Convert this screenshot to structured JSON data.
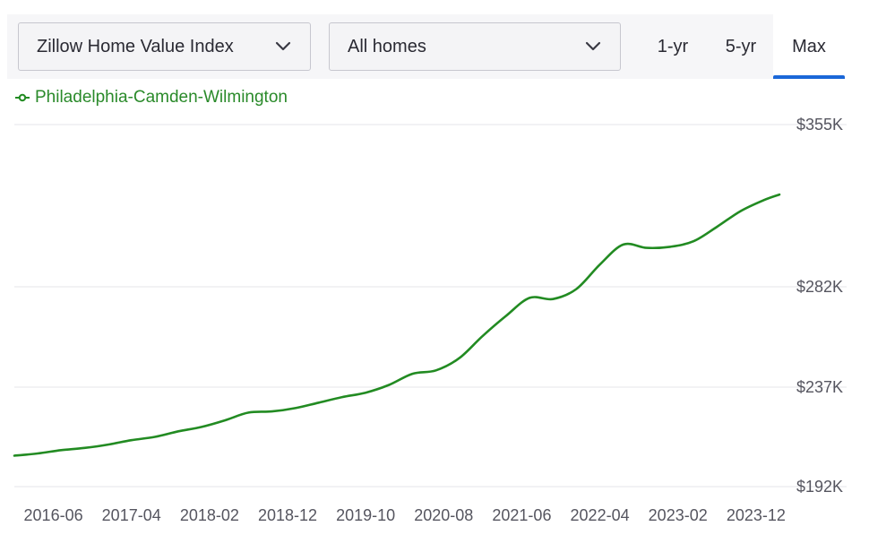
{
  "controls": {
    "metric_dropdown": "Zillow Home Value Index",
    "type_dropdown": "All homes",
    "range_tabs": [
      "1-yr",
      "5-yr",
      "Max"
    ],
    "active_range": "Max"
  },
  "colors": {
    "series": "#228b22",
    "accent": "#1a67d8",
    "grid": "#e6e6ea"
  },
  "chart_data": {
    "type": "line",
    "title": "",
    "xlabel": "",
    "ylabel": "",
    "legend": "top-left",
    "grid": true,
    "x_ticks": [
      "2016-06",
      "2017-04",
      "2018-02",
      "2018-12",
      "2019-10",
      "2020-08",
      "2021-06",
      "2022-04",
      "2023-02",
      "2023-12"
    ],
    "y_ticks": [
      "$192K",
      "$237K",
      "$282K",
      "$355K"
    ],
    "y_tick_values": [
      192000,
      237000,
      282000,
      355000
    ],
    "ylim": [
      192000,
      355000
    ],
    "series": [
      {
        "name": "Philadelphia-Camden-Wilmington",
        "points": [
          [
            "2016-01",
            206000
          ],
          [
            "2016-04",
            207000
          ],
          [
            "2016-07",
            208500
          ],
          [
            "2016-10",
            209500
          ],
          [
            "2017-01",
            211000
          ],
          [
            "2017-04",
            213000
          ],
          [
            "2017-07",
            214500
          ],
          [
            "2017-10",
            217000
          ],
          [
            "2018-01",
            219000
          ],
          [
            "2018-04",
            222000
          ],
          [
            "2018-07",
            225500
          ],
          [
            "2018-10",
            226000
          ],
          [
            "2019-01",
            227500
          ],
          [
            "2019-04",
            230000
          ],
          [
            "2019-07",
            232500
          ],
          [
            "2019-10",
            234500
          ],
          [
            "2020-01",
            238000
          ],
          [
            "2020-04",
            243000
          ],
          [
            "2020-07",
            244500
          ],
          [
            "2020-10",
            250000
          ],
          [
            "2021-01",
            260000
          ],
          [
            "2021-04",
            269000
          ],
          [
            "2021-07",
            277000
          ],
          [
            "2021-10",
            276500
          ],
          [
            "2022-01",
            281000
          ],
          [
            "2022-04",
            292000
          ],
          [
            "2022-07",
            301000
          ],
          [
            "2022-10",
            299500
          ],
          [
            "2023-01",
            300000
          ],
          [
            "2023-04",
            302500
          ],
          [
            "2023-07",
            309000
          ],
          [
            "2023-10",
            316000
          ],
          [
            "2024-01",
            321000
          ],
          [
            "2024-03",
            323500
          ]
        ]
      }
    ]
  }
}
